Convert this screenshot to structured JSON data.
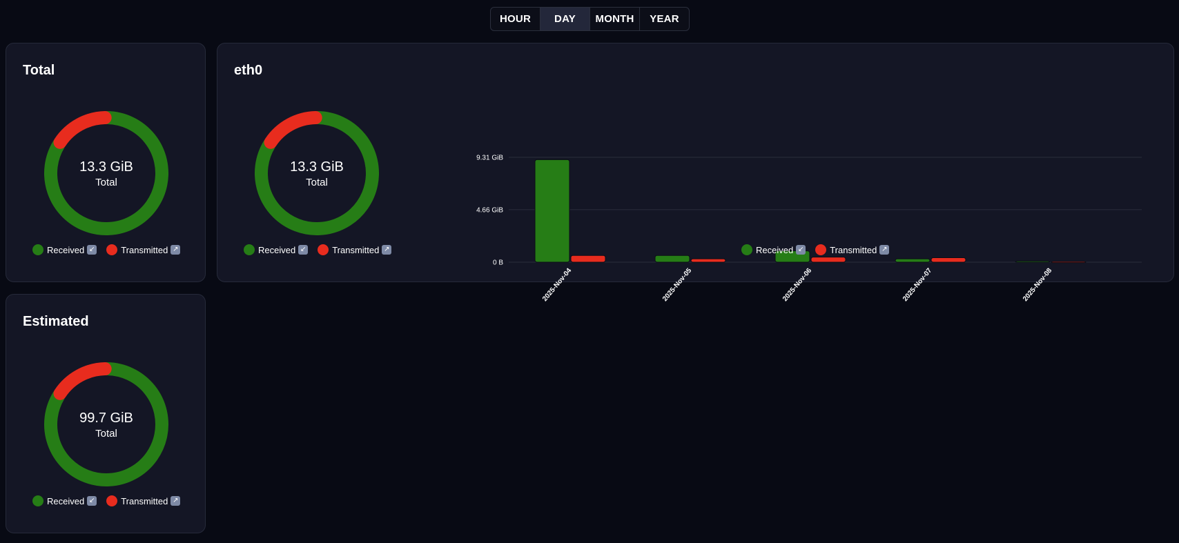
{
  "range_selector": {
    "options": [
      "HOUR",
      "DAY",
      "MONTH",
      "YEAR"
    ],
    "active": "DAY"
  },
  "colors": {
    "received": "#267d16",
    "transmitted": "#e82c1e"
  },
  "legend": {
    "received_label": "Received",
    "transmitted_label": "Transmitted",
    "received_icon": "arrow-down-left-icon",
    "transmitted_icon": "arrow-up-right-icon"
  },
  "cards": {
    "total": {
      "title": "Total",
      "value": "13.3 GiB",
      "label": "Total",
      "received_fraction": 0.84,
      "transmitted_fraction": 0.16
    },
    "eth0": {
      "title": "eth0",
      "value": "13.3 GiB",
      "label": "Total",
      "received_fraction": 0.84,
      "transmitted_fraction": 0.16
    },
    "estimated": {
      "title": "Estimated",
      "value": "99.7 GiB",
      "label": "Total",
      "received_fraction": 0.84,
      "transmitted_fraction": 0.16
    }
  },
  "chart_data": {
    "type": "bar",
    "categories": [
      "2025-Nov-04",
      "2025-Nov-05",
      "2025-Nov-06",
      "2025-Nov-07",
      "2025-Nov-08"
    ],
    "series": [
      {
        "name": "Received",
        "values": [
          9.1,
          0.6,
          1.0,
          0.3,
          0.1
        ]
      },
      {
        "name": "Transmitted",
        "values": [
          0.6,
          0.3,
          0.45,
          0.4,
          0.05
        ]
      }
    ],
    "yticks": [
      {
        "value": 0,
        "label": "0 B"
      },
      {
        "value": 4.66,
        "label": "4.66 GiB"
      },
      {
        "value": 9.31,
        "label": "9.31 GiB"
      }
    ],
    "ylim": [
      0,
      9.31
    ],
    "unit": "GiB",
    "grid": true,
    "legend": "bottom-center"
  }
}
